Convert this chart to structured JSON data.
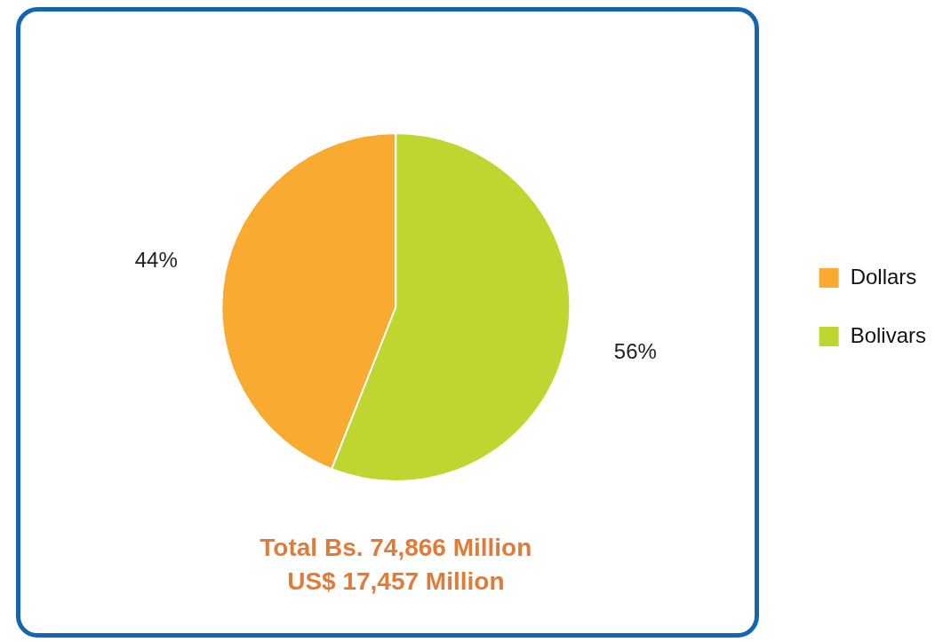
{
  "chart_data": {
    "type": "pie",
    "categories": [
      "Dollars",
      "Bolivars"
    ],
    "values": [
      44,
      56
    ],
    "colors": [
      "#f8ab30",
      "#c0d630"
    ],
    "value_labels": [
      "44%",
      "56%"
    ],
    "legend": "right",
    "annotations": [
      "Total Bs. 74,866 Million",
      "US$ 17,457 Million"
    ]
  }
}
